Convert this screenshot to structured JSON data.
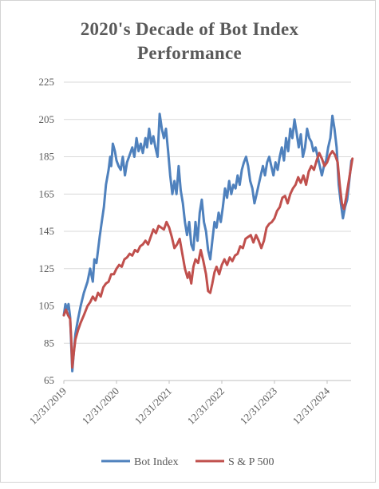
{
  "chart_data": {
    "type": "line",
    "title_line1": "2020's Decade of Bot Index",
    "title_line2": "Performance",
    "ylim": [
      65,
      225
    ],
    "y_ticks": [
      "65",
      "85",
      "105",
      "125",
      "145",
      "165",
      "185",
      "205",
      "225"
    ],
    "y_tick_values": [
      65,
      85,
      105,
      125,
      145,
      165,
      185,
      205,
      225
    ],
    "x_ticks": [
      "12/31/2019",
      "12/31/2020",
      "12/31/2021",
      "12/31/2022",
      "12/31/2023",
      "12/31/2024"
    ],
    "x_tick_values": [
      2020.0,
      2021.0,
      2022.0,
      2023.0,
      2024.0,
      2025.0
    ],
    "xlim": [
      2020.0,
      2025.48
    ],
    "legend_position": "bottom",
    "series": [
      {
        "name": "Bot Index",
        "color": "#4f81bd",
        "points": [
          [
            2020.0,
            100
          ],
          [
            2020.03,
            106
          ],
          [
            2020.06,
            103
          ],
          [
            2020.09,
            106
          ],
          [
            2020.12,
            99
          ],
          [
            2020.14,
            85
          ],
          [
            2020.16,
            70
          ],
          [
            2020.19,
            80
          ],
          [
            2020.22,
            90
          ],
          [
            2020.27,
            98
          ],
          [
            2020.32,
            105
          ],
          [
            2020.38,
            112
          ],
          [
            2020.45,
            118
          ],
          [
            2020.5,
            125
          ],
          [
            2020.55,
            118
          ],
          [
            2020.58,
            130
          ],
          [
            2020.62,
            128
          ],
          [
            2020.68,
            142
          ],
          [
            2020.72,
            150
          ],
          [
            2020.76,
            158
          ],
          [
            2020.8,
            170
          ],
          [
            2020.85,
            178
          ],
          [
            2020.88,
            185
          ],
          [
            2020.9,
            180
          ],
          [
            2020.93,
            192
          ],
          [
            2020.97,
            188
          ],
          [
            2021.0,
            183
          ],
          [
            2021.04,
            180
          ],
          [
            2021.08,
            178
          ],
          [
            2021.12,
            185
          ],
          [
            2021.16,
            175
          ],
          [
            2021.2,
            182
          ],
          [
            2021.25,
            186
          ],
          [
            2021.3,
            190
          ],
          [
            2021.34,
            185
          ],
          [
            2021.38,
            195
          ],
          [
            2021.42,
            188
          ],
          [
            2021.46,
            192
          ],
          [
            2021.5,
            187
          ],
          [
            2021.55,
            195
          ],
          [
            2021.58,
            190
          ],
          [
            2021.62,
            200
          ],
          [
            2021.66,
            192
          ],
          [
            2021.7,
            196
          ],
          [
            2021.74,
            190
          ],
          [
            2021.78,
            185
          ],
          [
            2021.82,
            208
          ],
          [
            2021.86,
            200
          ],
          [
            2021.9,
            195
          ],
          [
            2021.94,
            200
          ],
          [
            2021.98,
            188
          ],
          [
            2022.02,
            175
          ],
          [
            2022.06,
            165
          ],
          [
            2022.1,
            172
          ],
          [
            2022.14,
            165
          ],
          [
            2022.18,
            180
          ],
          [
            2022.22,
            167
          ],
          [
            2022.26,
            160
          ],
          [
            2022.3,
            150
          ],
          [
            2022.34,
            143
          ],
          [
            2022.38,
            150
          ],
          [
            2022.42,
            138
          ],
          [
            2022.46,
            135
          ],
          [
            2022.5,
            150
          ],
          [
            2022.54,
            140
          ],
          [
            2022.58,
            155
          ],
          [
            2022.62,
            162
          ],
          [
            2022.66,
            150
          ],
          [
            2022.7,
            145
          ],
          [
            2022.74,
            135
          ],
          [
            2022.78,
            130
          ],
          [
            2022.82,
            140
          ],
          [
            2022.86,
            150
          ],
          [
            2022.9,
            147
          ],
          [
            2022.94,
            155
          ],
          [
            2022.98,
            150
          ],
          [
            2023.02,
            158
          ],
          [
            2023.06,
            168
          ],
          [
            2023.1,
            163
          ],
          [
            2023.14,
            172
          ],
          [
            2023.18,
            165
          ],
          [
            2023.22,
            170
          ],
          [
            2023.26,
            168
          ],
          [
            2023.3,
            175
          ],
          [
            2023.34,
            170
          ],
          [
            2023.38,
            178
          ],
          [
            2023.42,
            182
          ],
          [
            2023.46,
            185
          ],
          [
            2023.5,
            180
          ],
          [
            2023.54,
            172
          ],
          [
            2023.58,
            168
          ],
          [
            2023.62,
            160
          ],
          [
            2023.66,
            165
          ],
          [
            2023.7,
            170
          ],
          [
            2023.74,
            175
          ],
          [
            2023.78,
            180
          ],
          [
            2023.82,
            175
          ],
          [
            2023.86,
            182
          ],
          [
            2023.9,
            185
          ],
          [
            2023.94,
            180
          ],
          [
            2023.98,
            175
          ],
          [
            2024.02,
            182
          ],
          [
            2024.06,
            178
          ],
          [
            2024.1,
            185
          ],
          [
            2024.14,
            190
          ],
          [
            2024.18,
            183
          ],
          [
            2024.22,
            195
          ],
          [
            2024.26,
            188
          ],
          [
            2024.3,
            200
          ],
          [
            2024.34,
            195
          ],
          [
            2024.38,
            205
          ],
          [
            2024.42,
            198
          ],
          [
            2024.46,
            190
          ],
          [
            2024.5,
            197
          ],
          [
            2024.54,
            185
          ],
          [
            2024.58,
            190
          ],
          [
            2024.62,
            200
          ],
          [
            2024.66,
            195
          ],
          [
            2024.7,
            193
          ],
          [
            2024.74,
            188
          ],
          [
            2024.78,
            190
          ],
          [
            2024.82,
            185
          ],
          [
            2024.86,
            180
          ],
          [
            2024.9,
            175
          ],
          [
            2024.94,
            180
          ],
          [
            2024.98,
            183
          ],
          [
            2025.02,
            190
          ],
          [
            2025.06,
            195
          ],
          [
            2025.1,
            207
          ],
          [
            2025.14,
            200
          ],
          [
            2025.18,
            190
          ],
          [
            2025.22,
            170
          ],
          [
            2025.26,
            160
          ],
          [
            2025.3,
            152
          ],
          [
            2025.34,
            158
          ],
          [
            2025.38,
            162
          ],
          [
            2025.42,
            172
          ],
          [
            2025.46,
            183
          ]
        ]
      },
      {
        "name": "S & P 500",
        "color": "#c0504d",
        "points": [
          [
            2020.0,
            100
          ],
          [
            2020.04,
            103
          ],
          [
            2020.08,
            100
          ],
          [
            2020.12,
            98
          ],
          [
            2020.14,
            88
          ],
          [
            2020.16,
            72
          ],
          [
            2020.19,
            80
          ],
          [
            2020.22,
            87
          ],
          [
            2020.27,
            92
          ],
          [
            2020.32,
            96
          ],
          [
            2020.38,
            100
          ],
          [
            2020.45,
            105
          ],
          [
            2020.5,
            107
          ],
          [
            2020.55,
            110
          ],
          [
            2020.6,
            108
          ],
          [
            2020.65,
            112
          ],
          [
            2020.7,
            110
          ],
          [
            2020.75,
            115
          ],
          [
            2020.8,
            117
          ],
          [
            2020.85,
            118
          ],
          [
            2020.9,
            122
          ],
          [
            2020.95,
            122
          ],
          [
            2021.0,
            125
          ],
          [
            2021.05,
            127
          ],
          [
            2021.1,
            126
          ],
          [
            2021.15,
            130
          ],
          [
            2021.2,
            131
          ],
          [
            2021.25,
            133
          ],
          [
            2021.3,
            132
          ],
          [
            2021.35,
            135
          ],
          [
            2021.4,
            134
          ],
          [
            2021.45,
            137
          ],
          [
            2021.5,
            138
          ],
          [
            2021.55,
            140
          ],
          [
            2021.6,
            138
          ],
          [
            2021.65,
            142
          ],
          [
            2021.7,
            146
          ],
          [
            2021.75,
            144
          ],
          [
            2021.8,
            148
          ],
          [
            2021.85,
            147
          ],
          [
            2021.9,
            146
          ],
          [
            2021.95,
            150
          ],
          [
            2022.0,
            147
          ],
          [
            2022.05,
            142
          ],
          [
            2022.1,
            136
          ],
          [
            2022.15,
            138
          ],
          [
            2022.2,
            141
          ],
          [
            2022.25,
            133
          ],
          [
            2022.3,
            125
          ],
          [
            2022.35,
            120
          ],
          [
            2022.38,
            123
          ],
          [
            2022.42,
            117
          ],
          [
            2022.46,
            126
          ],
          [
            2022.5,
            130
          ],
          [
            2022.55,
            128
          ],
          [
            2022.6,
            135
          ],
          [
            2022.65,
            129
          ],
          [
            2022.7,
            122
          ],
          [
            2022.74,
            113
          ],
          [
            2022.78,
            112
          ],
          [
            2022.82,
            117
          ],
          [
            2022.86,
            123
          ],
          [
            2022.9,
            126
          ],
          [
            2022.95,
            122
          ],
          [
            2023.0,
            127
          ],
          [
            2023.05,
            130
          ],
          [
            2023.1,
            127
          ],
          [
            2023.15,
            131
          ],
          [
            2023.2,
            129
          ],
          [
            2023.25,
            132
          ],
          [
            2023.3,
            133
          ],
          [
            2023.35,
            137
          ],
          [
            2023.4,
            136
          ],
          [
            2023.45,
            141
          ],
          [
            2023.5,
            142
          ],
          [
            2023.55,
            143
          ],
          [
            2023.6,
            139
          ],
          [
            2023.65,
            143
          ],
          [
            2023.7,
            140
          ],
          [
            2023.75,
            136
          ],
          [
            2023.8,
            140
          ],
          [
            2023.85,
            147
          ],
          [
            2023.9,
            149
          ],
          [
            2023.95,
            150
          ],
          [
            2024.0,
            152
          ],
          [
            2024.05,
            156
          ],
          [
            2024.1,
            158
          ],
          [
            2024.15,
            163
          ],
          [
            2024.2,
            164
          ],
          [
            2024.25,
            160
          ],
          [
            2024.3,
            165
          ],
          [
            2024.35,
            168
          ],
          [
            2024.4,
            170
          ],
          [
            2024.45,
            174
          ],
          [
            2024.5,
            171
          ],
          [
            2024.55,
            175
          ],
          [
            2024.6,
            170
          ],
          [
            2024.65,
            177
          ],
          [
            2024.7,
            180
          ],
          [
            2024.75,
            178
          ],
          [
            2024.8,
            183
          ],
          [
            2024.85,
            187
          ],
          [
            2024.9,
            184
          ],
          [
            2024.95,
            180
          ],
          [
            2025.0,
            182
          ],
          [
            2025.05,
            186
          ],
          [
            2025.1,
            188
          ],
          [
            2025.15,
            186
          ],
          [
            2025.2,
            182
          ],
          [
            2025.24,
            170
          ],
          [
            2025.28,
            160
          ],
          [
            2025.32,
            157
          ],
          [
            2025.36,
            163
          ],
          [
            2025.4,
            170
          ],
          [
            2025.44,
            177
          ],
          [
            2025.48,
            184
          ]
        ]
      }
    ]
  }
}
